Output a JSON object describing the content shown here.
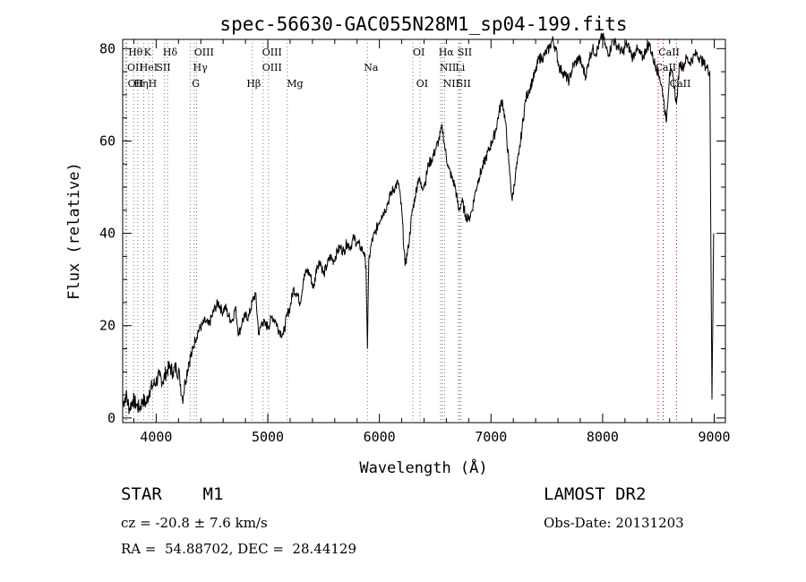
{
  "chart_data": {
    "type": "line",
    "title": "spec-56630-GAC055N28M1_sp04-199.fits",
    "xlabel": "Wavelength (Å)",
    "ylabel": "Flux (relative)",
    "xlim": [
      3700,
      9100
    ],
    "ylim": [
      -1,
      82
    ],
    "xticks": [
      4000,
      5000,
      6000,
      7000,
      8000,
      9000
    ],
    "yticks": [
      0,
      20,
      40,
      60,
      80
    ],
    "grid": false,
    "series": [
      {
        "x": [
          3700,
          3730,
          3760,
          3790,
          3820,
          3850,
          3880,
          3910,
          3940,
          3970,
          4000,
          4030,
          4060,
          4090,
          4120,
          4150,
          4180,
          4210,
          4235,
          4260,
          4290,
          4320,
          4350,
          4380,
          4410,
          4440,
          4470,
          4500,
          4530,
          4560,
          4590,
          4620,
          4650,
          4680,
          4710,
          4740,
          4770,
          4800,
          4830,
          4860,
          4890,
          4920,
          4950,
          4980,
          5010,
          5040,
          5070,
          5100,
          5140,
          5170,
          5200,
          5230,
          5260,
          5290,
          5320,
          5350,
          5380,
          5410,
          5440,
          5470,
          5500,
          5530,
          5560,
          5590,
          5620,
          5650,
          5680,
          5710,
          5740,
          5770,
          5800,
          5830,
          5860,
          5880,
          5893,
          5905,
          5930,
          5960,
          5990,
          6020,
          6050,
          6080,
          6110,
          6140,
          6170,
          6200,
          6230,
          6260,
          6290,
          6320,
          6350,
          6380,
          6410,
          6440,
          6470,
          6500,
          6530,
          6563,
          6590,
          6620,
          6650,
          6680,
          6710,
          6740,
          6770,
          6800,
          6830,
          6860,
          6890,
          6920,
          6950,
          6980,
          7010,
          7040,
          7070,
          7100,
          7130,
          7160,
          7190,
          7220,
          7250,
          7280,
          7310,
          7340,
          7370,
          7400,
          7430,
          7460,
          7490,
          7520,
          7550,
          7580,
          7610,
          7640,
          7670,
          7700,
          7730,
          7760,
          7790,
          7820,
          7850,
          7880,
          7910,
          7940,
          7970,
          8000,
          8030,
          8060,
          8090,
          8120,
          8150,
          8180,
          8210,
          8240,
          8270,
          8300,
          8330,
          8360,
          8390,
          8420,
          8450,
          8480,
          8510,
          8542,
          8570,
          8600,
          8630,
          8662,
          8690,
          8720,
          8750,
          8780,
          8810,
          8840,
          8870,
          8900,
          8930,
          8960,
          8980,
          8995
        ],
        "y": [
          3,
          5,
          2,
          4,
          3,
          2,
          4,
          3,
          6,
          7,
          8,
          9,
          8,
          10,
          11,
          10,
          11,
          9,
          4,
          8,
          12,
          14,
          17,
          19,
          20,
          21,
          20,
          22,
          24,
          25,
          23,
          24,
          22,
          21,
          24,
          18,
          21,
          22,
          22,
          25,
          27,
          18,
          21,
          20,
          20,
          22,
          21,
          19,
          18,
          22,
          24,
          28,
          27,
          25,
          30,
          32,
          31,
          28,
          33,
          34,
          31,
          33,
          35,
          34,
          36,
          37,
          36,
          38,
          37,
          39,
          38,
          37,
          36,
          33,
          15,
          34,
          38,
          40,
          42,
          44,
          45,
          47,
          49,
          50,
          51,
          45,
          33,
          37,
          44,
          48,
          52,
          50,
          51,
          55,
          56,
          58,
          60,
          63,
          58,
          54,
          52,
          50,
          45,
          47,
          44,
          43,
          45,
          49,
          52,
          54,
          56,
          58,
          60,
          62,
          66,
          69,
          64,
          55,
          47,
          53,
          57,
          63,
          69,
          71,
          73,
          75,
          78,
          78,
          79,
          80,
          82,
          80,
          76,
          75,
          74,
          73,
          76,
          77,
          78,
          76,
          74,
          78,
          80,
          79,
          81,
          83,
          80,
          79,
          82,
          81,
          80,
          79,
          81,
          80,
          78,
          80,
          79,
          78,
          80,
          81,
          78,
          76,
          74,
          70,
          64,
          75,
          74,
          68,
          77,
          76,
          78,
          77,
          78,
          79,
          78,
          77,
          76,
          75,
          4,
          40
        ]
      }
    ],
    "lines": [
      {
        "label": "Hθ",
        "x": 3798,
        "row": 1,
        "lx": 3750
      },
      {
        "label": "K",
        "x": 3934,
        "row": 1,
        "lx": 3890
      },
      {
        "label": "Hδ",
        "x": 4102,
        "row": 1,
        "lx": 4060
      },
      {
        "label": "OIII",
        "x": 4363,
        "row": 1,
        "lx": 4340
      },
      {
        "label": "OIII",
        "x": 4959,
        "row": 1,
        "lx": 4950
      },
      {
        "label": "OI",
        "x": 6300,
        "row": 1,
        "lx": 6300
      },
      {
        "label": "Hα",
        "x": 6563,
        "row": 1,
        "lx": 6530
      },
      {
        "label": "SII",
        "x": 6717,
        "row": 1,
        "lx": 6700
      },
      {
        "label": "CaII",
        "x": 8498,
        "row": 1,
        "lx": 8500
      },
      {
        "label": "OII",
        "x": 3727,
        "row": 2,
        "lx": 3740
      },
      {
        "label": "HeI",
        "x": 3889,
        "row": 2,
        "lx": 3850
      },
      {
        "label": "SII",
        "x": 4072,
        "row": 2,
        "lx": 4000
      },
      {
        "label": "Hγ",
        "x": 4340,
        "row": 2,
        "lx": 4330
      },
      {
        "label": "OIII",
        "x": 5007,
        "row": 2,
        "lx": 4950
      },
      {
        "label": "Na",
        "x": 5893,
        "row": 2,
        "lx": 5860
      },
      {
        "label": "NII",
        "x": 6548,
        "row": 2,
        "lx": 6540
      },
      {
        "label": "Li",
        "x": 6708,
        "row": 2,
        "lx": 6680
      },
      {
        "label": "CaII",
        "x": 8542,
        "row": 2,
        "lx": 8470
      },
      {
        "label": "OII",
        "x": 3736,
        "row": 3,
        "lx": 3745
      },
      {
        "label": "Hη",
        "x": 3835,
        "row": 3,
        "lx": 3800
      },
      {
        "label": "H",
        "x": 3968,
        "row": 3,
        "lx": 3930
      },
      {
        "label": "G",
        "x": 4304,
        "row": 3,
        "lx": 4320
      },
      {
        "label": "Hβ",
        "x": 4861,
        "row": 3,
        "lx": 4810
      },
      {
        "label": "Mg",
        "x": 5175,
        "row": 3,
        "lx": 5170
      },
      {
        "label": "OI",
        "x": 6364,
        "row": 3,
        "lx": 6330
      },
      {
        "label": "NII",
        "x": 6584,
        "row": 3,
        "lx": 6570
      },
      {
        "label": "SII",
        "x": 6731,
        "row": 3,
        "lx": 6690
      },
      {
        "label": "CaII",
        "x": 8662,
        "row": 3,
        "lx": 8600
      }
    ]
  },
  "info": {
    "class_label": "STAR",
    "subclass": "M1",
    "survey": "LAMOST DR2",
    "cz": "cz = -20.8 ± 7.6 km/s",
    "obs_date": "Obs-Date: 20131203",
    "coords": "RA =  54.88702, DEC =  28.44129"
  }
}
